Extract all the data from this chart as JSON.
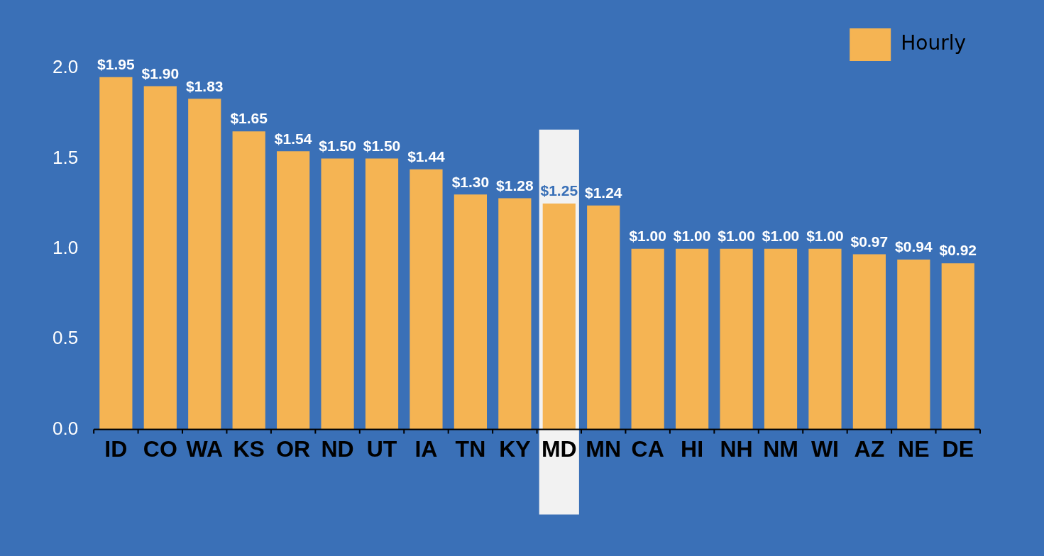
{
  "chart_data": {
    "type": "bar",
    "categories": [
      "ID",
      "CO",
      "WA",
      "KS",
      "OR",
      "ND",
      "UT",
      "IA",
      "TN",
      "KY",
      "MD",
      "MN",
      "CA",
      "HI",
      "NH",
      "NM",
      "WI",
      "AZ",
      "NE",
      "DE"
    ],
    "series": [
      {
        "name": "Hourly",
        "color": "#f5b453",
        "values": [
          1.95,
          1.9,
          1.83,
          1.65,
          1.54,
          1.5,
          1.5,
          1.44,
          1.3,
          1.28,
          1.25,
          1.24,
          1.0,
          1.0,
          1.0,
          1.0,
          1.0,
          0.97,
          0.94,
          0.92
        ],
        "value_labels": [
          "$1.95",
          "$1.90",
          "$1.83",
          "$1.65",
          "$1.54",
          "$1.50",
          "$1.50",
          "$1.44",
          "$1.30",
          "$1.28",
          "$1.25",
          "$1.24",
          "$1.00",
          "$1.00",
          "$1.00",
          "$1.00",
          "$1.00",
          "$0.97",
          "$0.94",
          "$0.92"
        ]
      }
    ],
    "ylim": [
      0,
      2
    ],
    "yticks": [
      {
        "value": 0,
        "label": "0.0"
      },
      {
        "value": 0.5,
        "label": "0.5"
      },
      {
        "value": 1,
        "label": "1.0"
      },
      {
        "value": 1.5,
        "label": "1.5"
      },
      {
        "value": 2,
        "label": "2.0"
      }
    ],
    "bands": [
      {
        "axis": "x",
        "from": "MD",
        "to": "MD",
        "color": "#f2f2f2"
      }
    ],
    "legend": "top right",
    "grid": false
  }
}
